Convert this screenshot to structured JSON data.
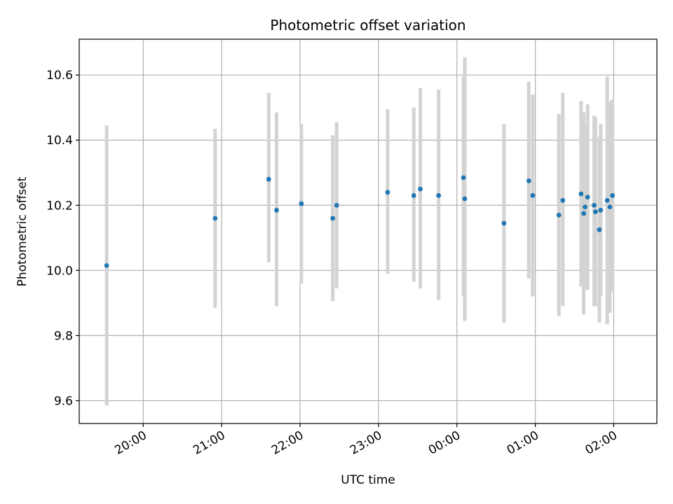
{
  "chart_data": {
    "type": "scatter",
    "title": "Photometric offset variation",
    "xlabel": "UTC time",
    "ylabel": "Photometric offset",
    "x_unit": "UTC time (HH:MM), night spanning midnight",
    "xlim": [
      "19:11",
      "02:33"
    ],
    "ylim": [
      9.53,
      10.71
    ],
    "grid": true,
    "x_ticks": [
      "20:00",
      "21:00",
      "22:00",
      "23:00",
      "00:00",
      "01:00",
      "02:00"
    ],
    "y_ticks": [
      "9.6",
      "9.8",
      "10.0",
      "10.2",
      "10.4",
      "10.6"
    ],
    "colors": {
      "point": "#1f77b4",
      "errorbar": "#d3d3d3",
      "grid": "#b0b0b0"
    },
    "series": [
      {
        "points": [
          {
            "x": "19:32",
            "y": 10.015,
            "ylow": 9.585,
            "yhigh": 10.445
          },
          {
            "x": "20:55",
            "y": 10.16,
            "ylow": 9.885,
            "yhigh": 10.435
          },
          {
            "x": "21:36",
            "y": 10.28,
            "ylow": 10.025,
            "yhigh": 10.545
          },
          {
            "x": "21:42",
            "y": 10.185,
            "ylow": 9.89,
            "yhigh": 10.485
          },
          {
            "x": "22:01",
            "y": 10.205,
            "ylow": 9.96,
            "yhigh": 10.45
          },
          {
            "x": "22:25",
            "y": 10.16,
            "ylow": 9.905,
            "yhigh": 10.415
          },
          {
            "x": "22:28",
            "y": 10.2,
            "ylow": 9.945,
            "yhigh": 10.455
          },
          {
            "x": "23:07",
            "y": 10.24,
            "ylow": 9.99,
            "yhigh": 10.495
          },
          {
            "x": "23:27",
            "y": 10.23,
            "ylow": 9.965,
            "yhigh": 10.5
          },
          {
            "x": "23:32",
            "y": 10.25,
            "ylow": 9.945,
            "yhigh": 10.56
          },
          {
            "x": "23:46",
            "y": 10.23,
            "ylow": 9.91,
            "yhigh": 10.555
          },
          {
            "x": "00:05",
            "y": 10.285,
            "ylow": 9.92,
            "yhigh": 10.595
          },
          {
            "x": "00:06",
            "y": 10.22,
            "ylow": 9.845,
            "yhigh": 10.655
          },
          {
            "x": "00:36",
            "y": 10.145,
            "ylow": 9.84,
            "yhigh": 10.45
          },
          {
            "x": "00:55",
            "y": 10.275,
            "ylow": 9.975,
            "yhigh": 10.58
          },
          {
            "x": "00:58",
            "y": 10.23,
            "ylow": 9.92,
            "yhigh": 10.54
          },
          {
            "x": "01:18",
            "y": 10.17,
            "ylow": 9.86,
            "yhigh": 10.48
          },
          {
            "x": "01:21",
            "y": 10.215,
            "ylow": 9.89,
            "yhigh": 10.545
          },
          {
            "x": "01:35",
            "y": 10.235,
            "ylow": 9.95,
            "yhigh": 10.52
          },
          {
            "x": "01:37",
            "y": 10.175,
            "ylow": 9.865,
            "yhigh": 10.485
          },
          {
            "x": "01:38",
            "y": 10.195,
            "ylow": 9.945,
            "yhigh": 10.445
          },
          {
            "x": "01:40",
            "y": 10.225,
            "ylow": 9.94,
            "yhigh": 10.51
          },
          {
            "x": "01:45",
            "y": 10.2,
            "ylow": 9.89,
            "yhigh": 10.475
          },
          {
            "x": "01:46",
            "y": 10.18,
            "ylow": 9.89,
            "yhigh": 10.47
          },
          {
            "x": "01:49",
            "y": 10.125,
            "ylow": 9.84,
            "yhigh": 10.41
          },
          {
            "x": "01:50",
            "y": 10.185,
            "ylow": 9.92,
            "yhigh": 10.45
          },
          {
            "x": "01:55",
            "y": 10.215,
            "ylow": 9.835,
            "yhigh": 10.595
          },
          {
            "x": "01:57",
            "y": 10.195,
            "ylow": 9.87,
            "yhigh": 10.52
          },
          {
            "x": "01:59",
            "y": 10.23,
            "ylow": 9.935,
            "yhigh": 10.525
          }
        ]
      }
    ]
  }
}
